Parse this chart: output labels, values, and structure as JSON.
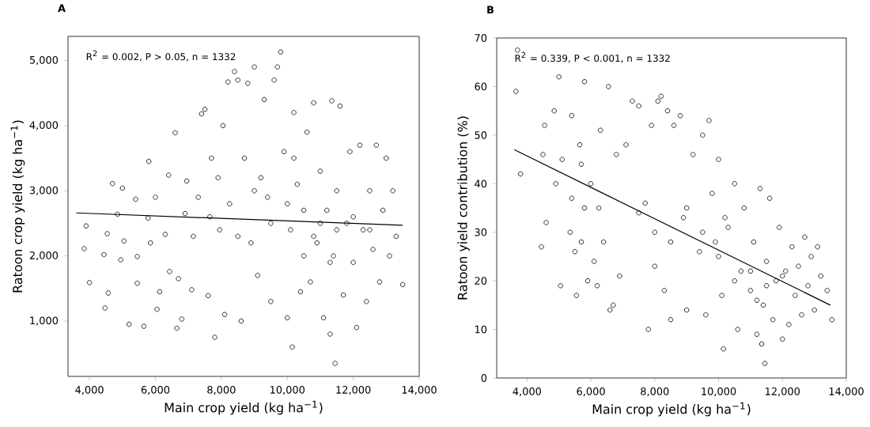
{
  "chart_data": [
    {
      "type": "scatter",
      "title": "A",
      "xlabel": "Main crop yield (kg ha$^{−1}$)",
      "ylabel": "Ratoon crop yield (kg ha$^{−1}$)",
      "annotations": [
        "R$^{2}$ = 0.002, P > 0.05, n = 1332"
      ],
      "marker": "circle",
      "grid": false,
      "xlim": [
        3350,
        14000
      ],
      "ylim": [
        150,
        5370
      ],
      "xticks": [
        {
          "value": 4000,
          "label": "4,000"
        },
        {
          "value": 6000,
          "label": "6,000"
        },
        {
          "value": 8000,
          "label": "8,000"
        },
        {
          "value": 10000,
          "label": "10,000"
        },
        {
          "value": 12000,
          "label": "12,000"
        },
        {
          "value": 14000,
          "label": "14,000"
        }
      ],
      "yticks": [
        {
          "value": 1000,
          "label": "1,000"
        },
        {
          "value": 2000,
          "label": "2,000"
        },
        {
          "value": 3000,
          "label": "3,000"
        },
        {
          "value": 4000,
          "label": "4,000"
        },
        {
          "value": 5000,
          "label": "5,000"
        }
      ],
      "series": [
        {
          "color": "#000000",
          "x": [
            3840,
            3900,
            4000,
            4440,
            4470,
            4540,
            4570,
            4700,
            4850,
            4950,
            5000,
            5050,
            5200,
            5400,
            5450,
            5450,
            5650,
            5780,
            5800,
            5850,
            6000,
            6050,
            6130,
            6300,
            6400,
            6430,
            6600,
            6650,
            6700,
            6800,
            6900,
            6950,
            7100,
            7150,
            7300,
            7400,
            7500,
            7600,
            7650,
            7700,
            7800,
            7900,
            7950,
            8050,
            8100,
            8200,
            8250,
            8400,
            8500,
            8600,
            8700,
            8800,
            8900,
            9000,
            9100,
            9200,
            9300,
            9400,
            9500,
            9600,
            9700,
            9800,
            9900,
            10000,
            10100,
            10150,
            10200,
            10300,
            10400,
            10500,
            10600,
            10700,
            10800,
            10900,
            11000,
            11100,
            11200,
            11300,
            11350,
            11400,
            11450,
            11500,
            11600,
            11700,
            11800,
            11900,
            12000,
            12100,
            12200,
            12300,
            12400,
            12500,
            12600,
            12700,
            12800,
            12900,
            13000,
            13100,
            13200,
            13300,
            13500,
            9500,
            10000,
            10500,
            11000,
            11500,
            12000,
            8500,
            9000,
            10200,
            11300,
            12500,
            10800
          ],
          "values": [
            2110,
            2460,
            1590,
            2020,
            1200,
            2340,
            1430,
            3110,
            2640,
            1940,
            3040,
            2230,
            950,
            2870,
            1990,
            1580,
            920,
            2580,
            3450,
            2200,
            2900,
            1180,
            1450,
            2330,
            3240,
            1760,
            3890,
            890,
            1650,
            1030,
            2650,
            3150,
            1480,
            2300,
            2900,
            4180,
            4250,
            1390,
            2600,
            3500,
            750,
            3200,
            2400,
            4000,
            1100,
            4670,
            2800,
            4830,
            4700,
            1000,
            3500,
            4650,
            2200,
            4900,
            1700,
            3200,
            4400,
            2900,
            1300,
            4700,
            4900,
            5130,
            3600,
            1050,
            2400,
            600,
            4200,
            3100,
            1450,
            2700,
            3900,
            1600,
            4350,
            2200,
            3300,
            1050,
            2700,
            800,
            4380,
            2000,
            350,
            3000,
            4300,
            1400,
            2500,
            3600,
            1900,
            900,
            3700,
            2400,
            1300,
            3000,
            2100,
            3700,
            1600,
            2700,
            3500,
            2000,
            3000,
            2300,
            1560,
            2500,
            2800,
            2000,
            2500,
            2400,
            2600,
            2300,
            3000,
            3500,
            1900,
            2400,
            2300
          ]
        },
        {
          "type": "line",
          "color": "#000000",
          "marker": "none",
          "x": [
            3600,
            13500
          ],
          "values": [
            2660,
            2470
          ]
        }
      ]
    },
    {
      "type": "scatter",
      "title": "B",
      "xlabel": "Main crop yield (kg ha$^{−1}$)",
      "ylabel": "Ratoon yield contribution (%)",
      "annotations": [
        "R$^{2}$ = 0.339, P < 0.001, n = 1332"
      ],
      "marker": "circle",
      "grid": false,
      "xlim": [
        3050,
        14000
      ],
      "ylim": [
        0,
        70
      ],
      "xticks": [
        {
          "value": 4000,
          "label": "4,000"
        },
        {
          "value": 6000,
          "label": "6,000"
        },
        {
          "value": 8000,
          "label": "8,000"
        },
        {
          "value": 10000,
          "label": "10,000"
        },
        {
          "value": 12000,
          "label": "12,000"
        },
        {
          "value": 14000,
          "label": "14,000"
        }
      ],
      "yticks": [
        0,
        10,
        20,
        30,
        40,
        50,
        60,
        70
      ],
      "series": [
        {
          "color": "#000000",
          "x": [
            3650,
            3700,
            3800,
            4450,
            4500,
            4550,
            4600,
            4850,
            4900,
            5000,
            5050,
            5100,
            5350,
            5400,
            5400,
            5500,
            5550,
            5650,
            5700,
            5700,
            5800,
            5800,
            5900,
            6000,
            6100,
            6200,
            6250,
            6300,
            6400,
            6550,
            6600,
            6700,
            6800,
            6900,
            7100,
            7300,
            7500,
            7700,
            7800,
            7900,
            8000,
            8100,
            8200,
            8300,
            8400,
            8500,
            8600,
            8800,
            8900,
            9000,
            9200,
            9400,
            9500,
            9600,
            9700,
            9800,
            9900,
            10000,
            10100,
            10150,
            10300,
            10500,
            10600,
            10700,
            10800,
            11000,
            11100,
            11200,
            11300,
            11350,
            11400,
            11450,
            11500,
            11600,
            11700,
            11800,
            11900,
            12000,
            12100,
            12200,
            12300,
            12400,
            12500,
            12600,
            12700,
            12800,
            12900,
            13000,
            13100,
            13200,
            13400,
            13550,
            8000,
            8500,
            9000,
            9500,
            10000,
            10500,
            11000,
            11500,
            12000,
            10200,
            11200,
            7500
          ],
          "values": [
            59,
            67.5,
            42,
            27,
            46,
            52,
            32,
            55,
            40,
            62,
            19,
            45,
            30,
            54,
            37,
            26,
            17,
            48,
            28,
            44,
            61,
            35,
            20,
            40,
            24,
            19,
            35,
            51,
            28,
            60,
            14,
            15,
            46,
            21,
            48,
            57,
            56,
            36,
            10,
            52,
            23,
            57,
            58,
            18,
            55,
            12,
            52,
            54,
            33,
            14,
            46,
            26,
            50,
            13,
            53,
            38,
            28,
            45,
            17,
            6,
            31,
            40,
            10,
            22,
            35,
            18,
            28,
            9,
            39,
            7,
            15,
            3,
            24,
            37,
            12,
            20,
            31,
            8,
            22,
            11,
            27,
            17,
            23,
            13,
            29,
            19,
            25,
            14,
            27,
            21,
            18,
            12,
            30,
            28,
            35,
            30,
            25,
            20,
            22,
            19,
            21,
            33,
            16,
            34
          ]
        },
        {
          "type": "line",
          "color": "#000000",
          "marker": "none",
          "x": [
            3600,
            13500
          ],
          "values": [
            47,
            15
          ]
        }
      ]
    }
  ]
}
